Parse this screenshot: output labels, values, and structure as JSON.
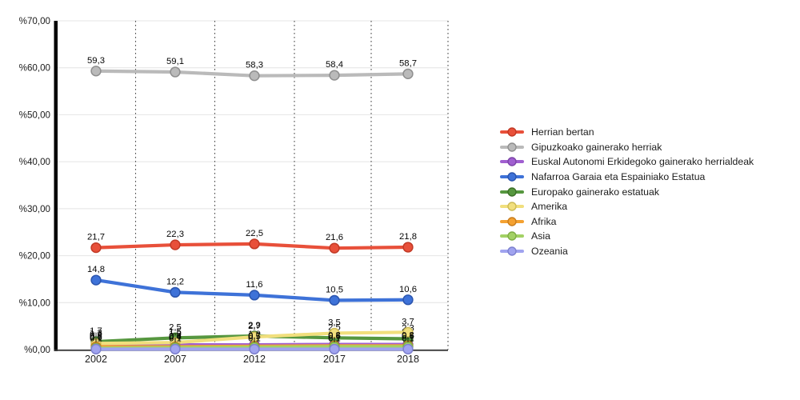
{
  "chart_data": {
    "type": "line",
    "categories": [
      "2002",
      "2007",
      "2012",
      "2017",
      "2018"
    ],
    "series": [
      {
        "name": "Herrian bertan",
        "color": "#e8503a",
        "border": "#c23a26",
        "values": [
          21.7,
          22.3,
          22.5,
          21.6,
          21.8
        ]
      },
      {
        "name": "Gipuzkoako gainerako herriak",
        "color": "#bababa",
        "border": "#8f8f8f",
        "values": [
          59.3,
          59.1,
          58.3,
          58.4,
          58.7
        ]
      },
      {
        "name": "Euskal Autonomi Erkidegoko gainerako herrialdeak",
        "color": "#a05fd0",
        "border": "#7c44a8",
        "values": [
          0.9,
          1.0,
          1.0,
          1.1,
          1.1
        ]
      },
      {
        "name": "Nafarroa Garaia eta Espainiako Estatua",
        "color": "#3e72d8",
        "border": "#2b55ae",
        "values": [
          14.8,
          12.2,
          11.6,
          10.5,
          10.6
        ]
      },
      {
        "name": "Europako gainerako estatuak",
        "color": "#56973f",
        "border": "#3d7029",
        "values": [
          1.7,
          2.5,
          2.9,
          2.5,
          2.3
        ]
      },
      {
        "name": "Amerika",
        "color": "#f1df7d",
        "border": "#cdbb55",
        "values": [
          1.3,
          1.5,
          2.7,
          3.5,
          3.7
        ]
      },
      {
        "name": "Afrika",
        "color": "#f4a131",
        "border": "#c87d1d",
        "values": [
          0.6,
          0.6,
          0.7,
          0.8,
          0.8
        ]
      },
      {
        "name": "Asia",
        "color": "#a3d165",
        "border": "#7fae45",
        "values": [
          0.3,
          0.4,
          0.5,
          0.6,
          0.6
        ]
      },
      {
        "name": "Ozeania",
        "color": "#a0a3ef",
        "border": "#7d81cf",
        "values": [
          0.1,
          0.1,
          0.1,
          0.1,
          0.1
        ]
      }
    ],
    "ylim": [
      0,
      70
    ],
    "y_ticks": [
      {
        "value": 0,
        "label": "%0,00"
      },
      {
        "value": 10,
        "label": "%10,00"
      },
      {
        "value": 20,
        "label": "%20,00"
      },
      {
        "value": 30,
        "label": "%30,00"
      },
      {
        "value": 40,
        "label": "%40,00"
      },
      {
        "value": 50,
        "label": "%50,00"
      },
      {
        "value": 60,
        "label": "%60,00"
      },
      {
        "value": 70,
        "label": "%70,00"
      }
    ],
    "point_labels": true,
    "decimal_separator": ",",
    "legend_position": "right",
    "grid": {
      "horizontal": true,
      "vertical_dotted": true
    },
    "colors": {
      "axis_bar": "#000000",
      "bottom_axis": "#3a3a3a",
      "h_grid": "#e4e4e4",
      "v_grid_dots": "#4a4a4a",
      "tick_text": "#1c1c1c",
      "point_label_text": "#050505"
    }
  }
}
